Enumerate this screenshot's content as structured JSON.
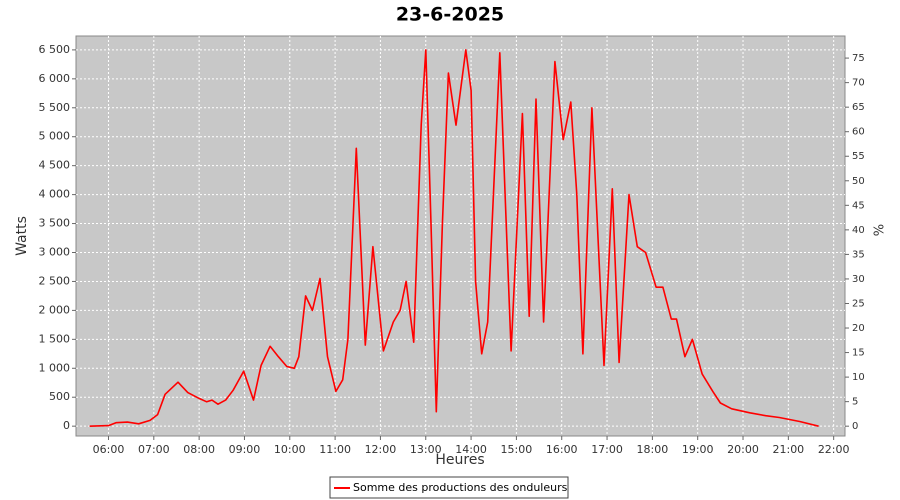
{
  "chart_data": {
    "type": "line",
    "title": "23-6-2025",
    "x_label": "Heures",
    "y_label": "Watts",
    "y2_label": "%",
    "grid": true,
    "legend": "bottom",
    "x": [
      "05:35",
      "06:00",
      "06:10",
      "06:25",
      "06:40",
      "06:55",
      "07:05",
      "07:15",
      "07:32",
      "07:45",
      "08:00",
      "08:10",
      "08:17",
      "08:25",
      "08:35",
      "08:45",
      "08:59",
      "09:12",
      "09:22",
      "09:34",
      "09:45",
      "09:56",
      "10:06",
      "10:12",
      "10:21",
      "10:30",
      "10:40",
      "10:50",
      "11:01",
      "11:10",
      "11:17",
      "11:28",
      "11:40",
      "11:50",
      "12:04",
      "12:17",
      "12:26",
      "12:34",
      "12:44",
      "12:54",
      "13:00",
      "13:07",
      "13:14",
      "13:22",
      "13:30",
      "13:40",
      "13:53",
      "14:00",
      "14:06",
      "14:14",
      "14:22",
      "14:38",
      "14:45",
      "14:53",
      "15:08",
      "15:17",
      "15:26",
      "15:36",
      "15:51",
      "16:02",
      "16:12",
      "16:20",
      "16:28",
      "16:40",
      "16:56",
      "17:07",
      "17:16",
      "17:29",
      "17:40",
      "17:51",
      "18:05",
      "18:14",
      "18:25",
      "18:32",
      "18:43",
      "18:53",
      "19:06",
      "19:20",
      "19:30",
      "19:45",
      "20:09",
      "20:30",
      "20:48",
      "21:15",
      "21:40"
    ],
    "series": [
      {
        "name": "Somme des productions des onduleurs",
        "color": "#ff0000",
        "values": [
          0,
          10,
          60,
          70,
          40,
          100,
          200,
          550,
          760,
          580,
          480,
          420,
          450,
          380,
          450,
          620,
          950,
          450,
          1050,
          1380,
          1200,
          1030,
          1000,
          1200,
          2250,
          2000,
          2550,
          1200,
          600,
          800,
          1500,
          4800,
          1400,
          3100,
          1300,
          1800,
          2000,
          2500,
          1450,
          5200,
          6500,
          3500,
          250,
          3500,
          6100,
          5200,
          6500,
          5800,
          2500,
          1250,
          1800,
          6450,
          4000,
          1300,
          5400,
          1900,
          5650,
          1800,
          6300,
          4950,
          5600,
          4000,
          1250,
          5500,
          1050,
          4100,
          1100,
          4000,
          3100,
          3000,
          2400,
          2400,
          1850,
          1850,
          1200,
          1500,
          900,
          600,
          400,
          300,
          230,
          180,
          150,
          80,
          0
        ]
      }
    ],
    "xlim": [
      "05:17",
      "22:15"
    ],
    "xticks": [
      "06:00",
      "07:00",
      "08:00",
      "09:00",
      "10:00",
      "11:00",
      "12:00",
      "13:00",
      "14:00",
      "15:00",
      "16:00",
      "17:00",
      "18:00",
      "19:00",
      "20:00",
      "21:00",
      "22:00"
    ],
    "ylim": [
      -170,
      6740
    ],
    "yticks": [
      0,
      500,
      {
        "value": 1000,
        "label": "1 000"
      },
      {
        "value": 1500,
        "label": "1 500"
      },
      {
        "value": 2000,
        "label": "2 000"
      },
      {
        "value": 2500,
        "label": "2 500"
      },
      {
        "value": 3000,
        "label": "3 000"
      },
      {
        "value": 3500,
        "label": "3 500"
      },
      {
        "value": 4000,
        "label": "4 000"
      },
      {
        "value": 4500,
        "label": "4 500"
      },
      {
        "value": 5000,
        "label": "5 000"
      },
      {
        "value": 5500,
        "label": "5 500"
      },
      {
        "value": 6000,
        "label": "6 000"
      },
      {
        "value": 6500,
        "label": "6 500"
      }
    ],
    "y2lim": [
      -2.0,
      79.5
    ],
    "y2ticks": [
      0,
      5,
      10,
      15,
      20,
      25,
      30,
      35,
      40,
      45,
      50,
      55,
      60,
      65,
      70,
      75
    ]
  }
}
